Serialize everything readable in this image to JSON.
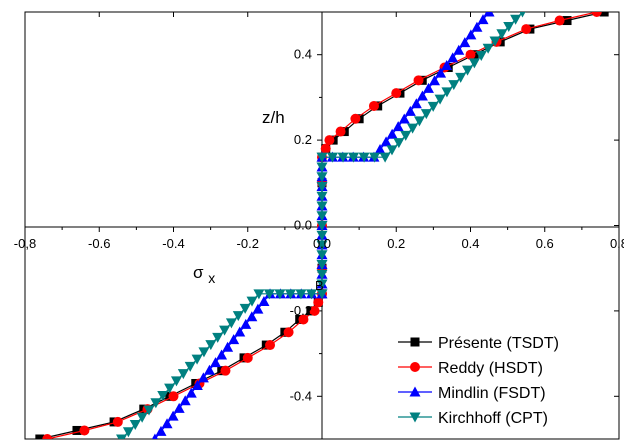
{
  "chart_data": {
    "type": "line",
    "title": "",
    "xlabel": "σx",
    "ylabel": "z/h",
    "xlim": [
      -0.8,
      0.8
    ],
    "ylim": [
      -0.5,
      0.5
    ],
    "grid": false,
    "legend_position": "bottom-right",
    "x_ticks": [
      "-0,8",
      "-0.6",
      "-0.4",
      "-0.2",
      "0.0",
      "0.2",
      "0.4",
      "0.6",
      "0,8"
    ],
    "y_ticks": [
      "-0.4",
      "-0.2",
      "0.0",
      "0.2",
      "0.4"
    ],
    "annotation": "B",
    "series": [
      {
        "name": "Présente (TSDT)",
        "marker": "square",
        "color": "#000000",
        "points": [
          [
            -0.76,
            -0.5
          ],
          [
            -0.66,
            -0.48
          ],
          [
            -0.56,
            -0.46
          ],
          [
            -0.48,
            -0.43
          ],
          [
            -0.41,
            -0.4
          ],
          [
            -0.34,
            -0.37
          ],
          [
            -0.27,
            -0.34
          ],
          [
            -0.21,
            -0.31
          ],
          [
            -0.15,
            -0.28
          ],
          [
            -0.1,
            -0.25
          ],
          [
            -0.06,
            -0.22
          ],
          [
            -0.03,
            -0.2
          ],
          [
            -0.01,
            -0.18
          ],
          [
            0.0,
            -0.16
          ],
          [
            0.0,
            -0.1
          ],
          [
            0.0,
            0.0
          ],
          [
            0.0,
            0.1
          ],
          [
            0.0,
            0.16
          ],
          [
            0.01,
            0.18
          ],
          [
            0.03,
            0.2
          ],
          [
            0.06,
            0.22
          ],
          [
            0.1,
            0.25
          ],
          [
            0.15,
            0.28
          ],
          [
            0.21,
            0.31
          ],
          [
            0.27,
            0.34
          ],
          [
            0.34,
            0.37
          ],
          [
            0.41,
            0.4
          ],
          [
            0.48,
            0.43
          ],
          [
            0.56,
            0.46
          ],
          [
            0.66,
            0.48
          ],
          [
            0.76,
            0.5
          ]
        ]
      },
      {
        "name": "Reddy (HSDT)",
        "marker": "circle",
        "color": "#ff0000",
        "points": [
          [
            -0.74,
            -0.5
          ],
          [
            -0.64,
            -0.48
          ],
          [
            -0.55,
            -0.46
          ],
          [
            -0.47,
            -0.43
          ],
          [
            -0.4,
            -0.4
          ],
          [
            -0.33,
            -0.37
          ],
          [
            -0.26,
            -0.34
          ],
          [
            -0.2,
            -0.31
          ],
          [
            -0.14,
            -0.28
          ],
          [
            -0.09,
            -0.25
          ],
          [
            -0.05,
            -0.22
          ],
          [
            -0.02,
            -0.2
          ],
          [
            -0.01,
            -0.18
          ],
          [
            0.0,
            -0.16
          ],
          [
            0.0,
            -0.1
          ],
          [
            0.0,
            0.0
          ],
          [
            0.0,
            0.1
          ],
          [
            0.0,
            0.16
          ],
          [
            0.01,
            0.18
          ],
          [
            0.02,
            0.2
          ],
          [
            0.05,
            0.22
          ],
          [
            0.09,
            0.25
          ],
          [
            0.14,
            0.28
          ],
          [
            0.2,
            0.31
          ],
          [
            0.26,
            0.34
          ],
          [
            0.33,
            0.37
          ],
          [
            0.4,
            0.4
          ],
          [
            0.47,
            0.43
          ],
          [
            0.55,
            0.46
          ],
          [
            0.64,
            0.48
          ],
          [
            0.74,
            0.5
          ]
        ]
      },
      {
        "name": "Mindlin (FSDT)",
        "marker": "triangle-up",
        "color": "#0000ff",
        "points": [
          [
            -0.45,
            -0.5
          ],
          [
            -0.14,
            -0.16
          ],
          [
            0.0,
            -0.16
          ],
          [
            0.0,
            0.16
          ],
          [
            0.14,
            0.16
          ],
          [
            0.45,
            0.5
          ]
        ]
      },
      {
        "name": "Kirchhoff (CPT)",
        "marker": "triangle-down",
        "color": "#008080",
        "points": [
          [
            -0.54,
            -0.5
          ],
          [
            -0.17,
            -0.16
          ],
          [
            0.0,
            -0.16
          ],
          [
            0.0,
            0.16
          ],
          [
            0.17,
            0.16
          ],
          [
            0.54,
            0.5
          ]
        ]
      }
    ]
  }
}
